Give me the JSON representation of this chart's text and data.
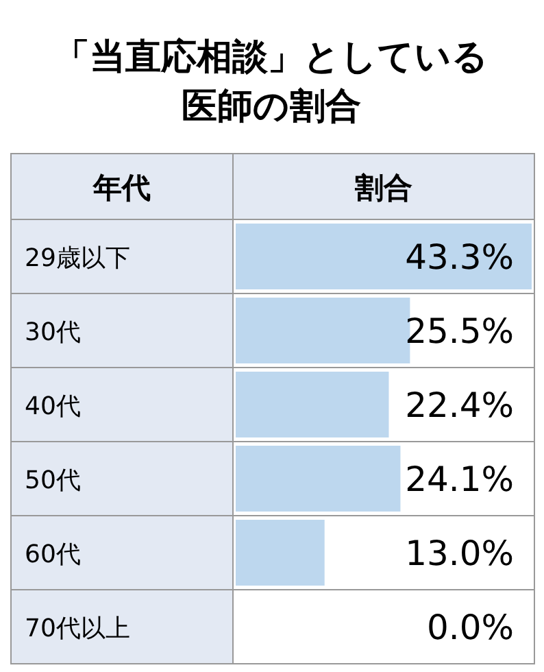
{
  "chart_data": {
    "type": "bar",
    "orientation": "horizontal",
    "title": "「当直応相談」としている医師の割合",
    "ylabel": "年代",
    "xlabel": "割合",
    "categories": [
      "29歳以下",
      "30代",
      "40代",
      "50代",
      "60代",
      "70代以上"
    ],
    "values": [
      43.3,
      25.5,
      22.4,
      24.1,
      13.0,
      0.0
    ],
    "value_labels": [
      "43.3%",
      "25.5%",
      "22.4%",
      "24.1%",
      "13.0%",
      "0.0%"
    ],
    "color": "#bdd7ee"
  }
}
